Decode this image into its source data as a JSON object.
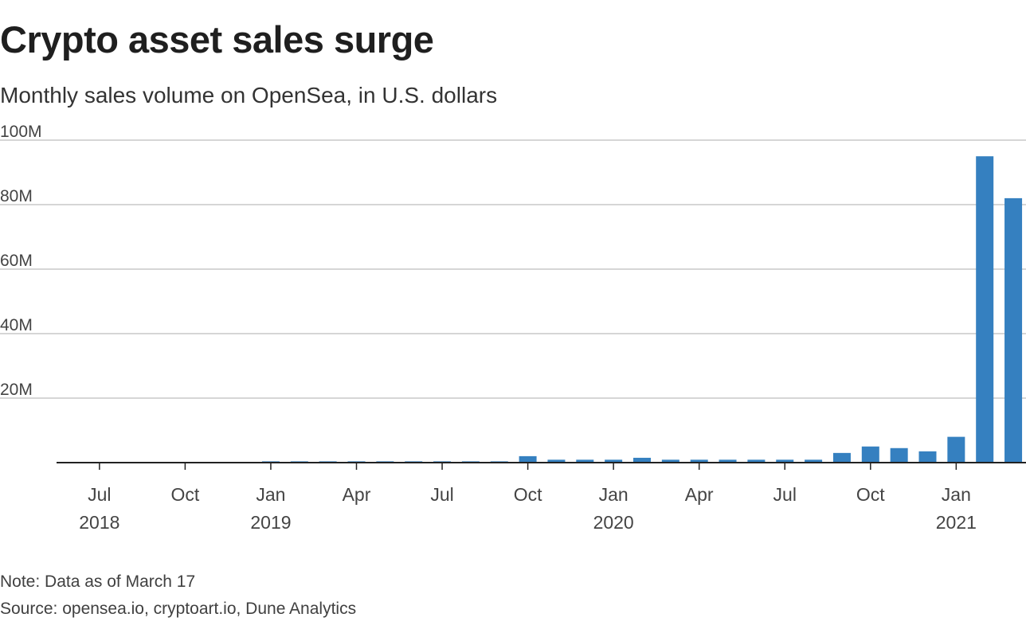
{
  "title": "Crypto asset sales surge",
  "subtitle": "Monthly sales volume on OpenSea, in U.S. dollars",
  "note": "Note: Data as of March 17",
  "source": "Source: opensea.io, cryptoart.io, Dune Analytics",
  "colors": {
    "bar": "#3580c0",
    "grid": "#c8c8c8",
    "axis": "#222222"
  },
  "chart_data": {
    "type": "bar",
    "title": "Crypto asset sales surge",
    "subtitle": "Monthly sales volume on OpenSea, in U.S. dollars",
    "ylabel": "",
    "xlabel": "",
    "ylim": [
      0,
      100000000
    ],
    "grid": true,
    "y_ticks": [
      {
        "value": 20000000,
        "label": "20M"
      },
      {
        "value": 40000000,
        "label": "40M"
      },
      {
        "value": 60000000,
        "label": "60M"
      },
      {
        "value": 80000000,
        "label": "80M"
      },
      {
        "value": 100000000,
        "label": "100M"
      }
    ],
    "x_ticks": [
      {
        "month": "2018-07",
        "label": "Jul",
        "year": "2018"
      },
      {
        "month": "2018-10",
        "label": "Oct",
        "year": ""
      },
      {
        "month": "2019-01",
        "label": "Jan",
        "year": "2019"
      },
      {
        "month": "2019-04",
        "label": "Apr",
        "year": ""
      },
      {
        "month": "2019-07",
        "label": "Jul",
        "year": ""
      },
      {
        "month": "2019-10",
        "label": "Oct",
        "year": ""
      },
      {
        "month": "2020-01",
        "label": "Jan",
        "year": "2020"
      },
      {
        "month": "2020-04",
        "label": "Apr",
        "year": ""
      },
      {
        "month": "2020-07",
        "label": "Jul",
        "year": ""
      },
      {
        "month": "2020-10",
        "label": "Oct",
        "year": ""
      },
      {
        "month": "2021-01",
        "label": "Jan",
        "year": "2021"
      }
    ],
    "categories": [
      "2018-06",
      "2018-07",
      "2018-08",
      "2018-09",
      "2018-10",
      "2018-11",
      "2018-12",
      "2019-01",
      "2019-02",
      "2019-03",
      "2019-04",
      "2019-05",
      "2019-06",
      "2019-07",
      "2019-08",
      "2019-09",
      "2019-10",
      "2019-11",
      "2019-12",
      "2020-01",
      "2020-02",
      "2020-03",
      "2020-04",
      "2020-05",
      "2020-06",
      "2020-07",
      "2020-08",
      "2020-09",
      "2020-10",
      "2020-11",
      "2020-12",
      "2021-01",
      "2021-02",
      "2021-03"
    ],
    "values": [
      0,
      0,
      0,
      0,
      0,
      0,
      0,
      400000,
      400000,
      400000,
      400000,
      400000,
      400000,
      400000,
      400000,
      400000,
      2000000,
      900000,
      900000,
      900000,
      1500000,
      900000,
      900000,
      900000,
      900000,
      900000,
      900000,
      3000000,
      5000000,
      4500000,
      3500000,
      8000000,
      95000000,
      82000000
    ]
  }
}
